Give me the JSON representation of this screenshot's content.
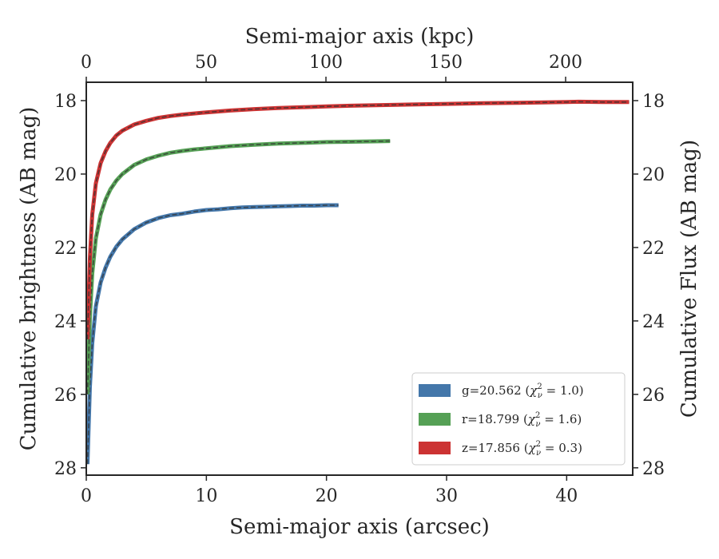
{
  "chart_data": {
    "type": "line",
    "title": "",
    "xlabel": "Semi-major axis (arcsec)",
    "ylabel": "Cumulative brightness (AB mag)",
    "top_xlabel": "Semi-major axis (kpc)",
    "right_ylabel": "Cumulative Flux (AB mag)",
    "xlim": [
      0,
      45.5
    ],
    "ylim": [
      28.2,
      17.5
    ],
    "top_xlim": [
      0,
      228
    ],
    "x_ticks": [
      0,
      10,
      20,
      30,
      40
    ],
    "y_ticks": [
      18,
      20,
      22,
      24,
      26,
      28
    ],
    "top_x_ticks": [
      0,
      50,
      100,
      150,
      200
    ],
    "y_inverted": true,
    "grid": false,
    "legend_position": "lower-right",
    "series": [
      {
        "name": "g=20.562",
        "chi2": "1.0",
        "color": "#4477aa",
        "x": [
          0.1,
          0.3,
          0.5,
          0.8,
          1.2,
          1.6,
          2,
          2.5,
          3,
          4,
          5,
          6,
          7,
          8,
          9,
          10,
          11,
          12,
          13,
          14,
          15,
          16,
          17,
          18,
          19,
          20,
          21
        ],
        "y": [
          27.9,
          25.8,
          24.6,
          23.6,
          22.95,
          22.55,
          22.25,
          21.98,
          21.78,
          21.5,
          21.32,
          21.2,
          21.12,
          21.08,
          21.02,
          20.98,
          20.96,
          20.93,
          20.91,
          20.9,
          20.89,
          20.88,
          20.87,
          20.86,
          20.86,
          20.85,
          20.85
        ]
      },
      {
        "name": "r=18.799",
        "chi2": "1.6",
        "color": "#55a055",
        "x": [
          0.1,
          0.3,
          0.5,
          0.8,
          1.2,
          1.6,
          2,
          2.5,
          3,
          4,
          5,
          6,
          7,
          8,
          9,
          10,
          12,
          14,
          16,
          18,
          20,
          22,
          24,
          25.3
        ],
        "y": [
          26.0,
          23.9,
          22.7,
          21.75,
          21.1,
          20.7,
          20.42,
          20.18,
          20.0,
          19.75,
          19.6,
          19.5,
          19.42,
          19.37,
          19.33,
          19.3,
          19.24,
          19.2,
          19.17,
          19.15,
          19.13,
          19.12,
          19.11,
          19.1
        ]
      },
      {
        "name": "z=17.856",
        "chi2": "0.3",
        "color": "#cc3333",
        "x": [
          0.1,
          0.3,
          0.5,
          0.8,
          1.2,
          1.6,
          2,
          2.5,
          3,
          4,
          5,
          6,
          7,
          8,
          10,
          12,
          14,
          16,
          18,
          20,
          22,
          25,
          28,
          30,
          33,
          36,
          38,
          40,
          41,
          43,
          45.2
        ],
        "y": [
          24.5,
          22.3,
          21.1,
          20.25,
          19.7,
          19.38,
          19.15,
          18.95,
          18.82,
          18.65,
          18.55,
          18.47,
          18.42,
          18.38,
          18.32,
          18.27,
          18.23,
          18.2,
          18.18,
          18.16,
          18.14,
          18.12,
          18.1,
          18.09,
          18.07,
          18.06,
          18.05,
          18.04,
          18.03,
          18.04,
          18.04
        ]
      }
    ]
  }
}
